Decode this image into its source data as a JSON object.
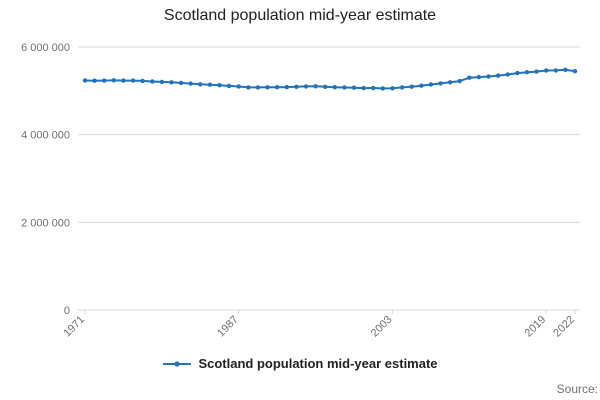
{
  "title": "Scotland population mid-year estimate",
  "legend": {
    "label": "Scotland population mid-year estimate"
  },
  "source_label": "Source:",
  "colors": {
    "line": "#2073bc",
    "grid": "#d9d9d9",
    "tick_text": "#707071",
    "title_text": "#222222"
  },
  "chart_data": {
    "type": "line",
    "title": "Scotland population mid-year estimate",
    "xlabel": "",
    "ylabel": "",
    "ylim": [
      0,
      6000000
    ],
    "grid": "horizontal",
    "legend_position": "bottom",
    "yticks": [
      {
        "value": 0,
        "label": "0"
      },
      {
        "value": 2000000,
        "label": "2 000 000"
      },
      {
        "value": 4000000,
        "label": "4 000 000"
      },
      {
        "value": 6000000,
        "label": "6 000 000"
      }
    ],
    "xticks": [
      {
        "value": 1971,
        "label": "1971"
      },
      {
        "value": 1987,
        "label": "1987"
      },
      {
        "value": 2003,
        "label": "2003"
      },
      {
        "value": 2019,
        "label": "2019"
      },
      {
        "value": 2022,
        "label": "2022"
      }
    ],
    "x": [
      1971,
      1972,
      1973,
      1974,
      1975,
      1976,
      1977,
      1978,
      1979,
      1980,
      1981,
      1982,
      1983,
      1984,
      1985,
      1986,
      1987,
      1988,
      1989,
      1990,
      1991,
      1992,
      1993,
      1994,
      1995,
      1996,
      1997,
      1998,
      1999,
      2000,
      2001,
      2002,
      2003,
      2004,
      2005,
      2006,
      2007,
      2008,
      2009,
      2010,
      2011,
      2012,
      2013,
      2014,
      2015,
      2016,
      2017,
      2018,
      2019,
      2020,
      2021,
      2022
    ],
    "series": [
      {
        "name": "Scotland population mid-year estimate",
        "values": [
          5235600,
          5230600,
          5233900,
          5240800,
          5232400,
          5233400,
          5226600,
          5212300,
          5204300,
          5193900,
          5180200,
          5165000,
          5148100,
          5139900,
          5127900,
          5111800,
          5099500,
          5077500,
          5078200,
          5081300,
          5083300,
          5085600,
          5092500,
          5102200,
          5103700,
          5092200,
          5083300,
          5077100,
          5072000,
          5062900,
          5064200,
          5054800,
          5057400,
          5078400,
          5094800,
          5116900,
          5144200,
          5168500,
          5194000,
          5222100,
          5299900,
          5313600,
          5327700,
          5347600,
          5373000,
          5404700,
          5424800,
          5438100,
          5463300,
          5466000,
          5479900,
          5447700
        ]
      }
    ]
  }
}
